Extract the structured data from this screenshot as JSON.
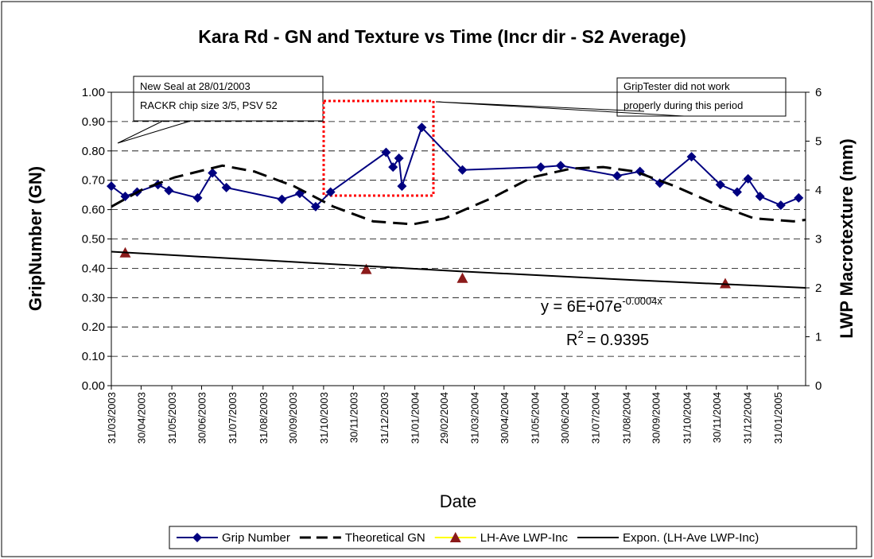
{
  "chart_data": {
    "type": "line",
    "title": "Kara Rd - GN and Texture vs Time (Incr dir - S2 Average)",
    "x_label": "Date",
    "y_label": "GripNumber (GN)",
    "y2_label": "LWP Macrotexture (mm)",
    "xlim": [
      37711,
      38411
    ],
    "xticks": [
      {
        "value": 37711,
        "label": "31/03/2003"
      },
      {
        "value": 37741,
        "label": "30/04/2003"
      },
      {
        "value": 37772,
        "label": "31/05/2003"
      },
      {
        "value": 37802,
        "label": "30/06/2003"
      },
      {
        "value": 37833,
        "label": "31/07/2003"
      },
      {
        "value": 37864,
        "label": "31/08/2003"
      },
      {
        "value": 37894,
        "label": "30/09/2003"
      },
      {
        "value": 37925,
        "label": "31/10/2003"
      },
      {
        "value": 37955,
        "label": "30/11/2003"
      },
      {
        "value": 37986,
        "label": "31/12/2003"
      },
      {
        "value": 38017,
        "label": "31/01/2004"
      },
      {
        "value": 38046,
        "label": "29/02/2004"
      },
      {
        "value": 38077,
        "label": "31/03/2004"
      },
      {
        "value": 38107,
        "label": "30/04/2004"
      },
      {
        "value": 38138,
        "label": "31/05/2004"
      },
      {
        "value": 38168,
        "label": "30/06/2004"
      },
      {
        "value": 38199,
        "label": "31/07/2004"
      },
      {
        "value": 38230,
        "label": "31/08/2004"
      },
      {
        "value": 38260,
        "label": "30/09/2004"
      },
      {
        "value": 38291,
        "label": "31/10/2004"
      },
      {
        "value": 38321,
        "label": "30/11/2004"
      },
      {
        "value": 38352,
        "label": "31/12/2004"
      },
      {
        "value": 38383,
        "label": "31/01/2005"
      }
    ],
    "ylim": [
      0,
      1
    ],
    "yticks": [
      {
        "value": 0,
        "label": "0.00"
      },
      {
        "value": 0.1,
        "label": "0.10"
      },
      {
        "value": 0.2,
        "label": "0.20"
      },
      {
        "value": 0.3,
        "label": "0.30"
      },
      {
        "value": 0.4,
        "label": "0.40"
      },
      {
        "value": 0.5,
        "label": "0.50"
      },
      {
        "value": 0.6,
        "label": "0.60"
      },
      {
        "value": 0.7,
        "label": "0.70"
      },
      {
        "value": 0.8,
        "label": "0.80"
      },
      {
        "value": 0.9,
        "label": "0.90"
      },
      {
        "value": 1,
        "label": "1.00"
      }
    ],
    "y2lim": [
      0,
      6
    ],
    "y2ticks": [
      0,
      1,
      2,
      3,
      4,
      5,
      6
    ],
    "grid": true,
    "legend": "bottom",
    "series": [
      {
        "name": "Grip Number",
        "color": "#000080",
        "marker": "diamond",
        "x": [
          37711,
          37725,
          37737,
          37758,
          37769,
          37798,
          37813,
          37827,
          37883,
          37901,
          37917,
          37932,
          37988,
          37995,
          38001,
          38004,
          38024,
          38065,
          38144,
          38164,
          38221,
          38244,
          38264,
          38296,
          38325,
          38342,
          38353,
          38365,
          38386,
          38404
        ],
        "values": [
          0.68,
          0.645,
          0.66,
          0.685,
          0.665,
          0.64,
          0.725,
          0.675,
          0.635,
          0.655,
          0.61,
          0.66,
          0.795,
          0.745,
          0.775,
          0.68,
          0.88,
          0.735,
          0.745,
          0.75,
          0.715,
          0.73,
          0.69,
          0.78,
          0.685,
          0.66,
          0.705,
          0.645,
          0.615,
          0.64
        ]
      },
      {
        "name": "Theoretical GN",
        "color": "#000000",
        "dash": true,
        "x": [
          37711,
          37743,
          37775,
          37823,
          37855,
          37895,
          37935,
          37975,
          38015,
          38047,
          38095,
          38135,
          38175,
          38207,
          38239,
          38279,
          38319,
          38359,
          38399,
          38411
        ],
        "values": [
          0.61,
          0.67,
          0.71,
          0.75,
          0.73,
          0.68,
          0.61,
          0.56,
          0.55,
          0.57,
          0.64,
          0.71,
          0.74,
          0.745,
          0.73,
          0.68,
          0.62,
          0.57,
          0.56,
          0.565
        ]
      },
      {
        "name": "LH-Ave LWP-Inc",
        "color": "#ffff00",
        "marker": "triangle",
        "marker_color": "#8b1a1a",
        "line": false,
        "axis": "y2",
        "x": [
          37725,
          37968,
          38065,
          38330
        ],
        "values": [
          2.72,
          2.38,
          2.2,
          2.09
        ]
      },
      {
        "name": "Expon. (LH-Ave LWP-Inc)",
        "color": "#000000",
        "axis": "y2",
        "x": [
          37711,
          37886,
          38061,
          38236,
          38411
        ],
        "values": [
          2.74,
          2.54,
          2.34,
          2.16,
          2.0
        ]
      }
    ],
    "annotations": [
      {
        "lines": [
          "New Seal at 28/01/2003",
          "RACKR chip size 3/5, PSV 52"
        ]
      },
      {
        "lines": [
          "GripTester did not work",
          "properly during this period"
        ]
      }
    ],
    "equation": {
      "base": "y = 6E+07e",
      "exponent": "-0.0004x"
    },
    "r_squared": {
      "symbol": "R",
      "power": "2",
      "value": "= 0.9395"
    }
  }
}
